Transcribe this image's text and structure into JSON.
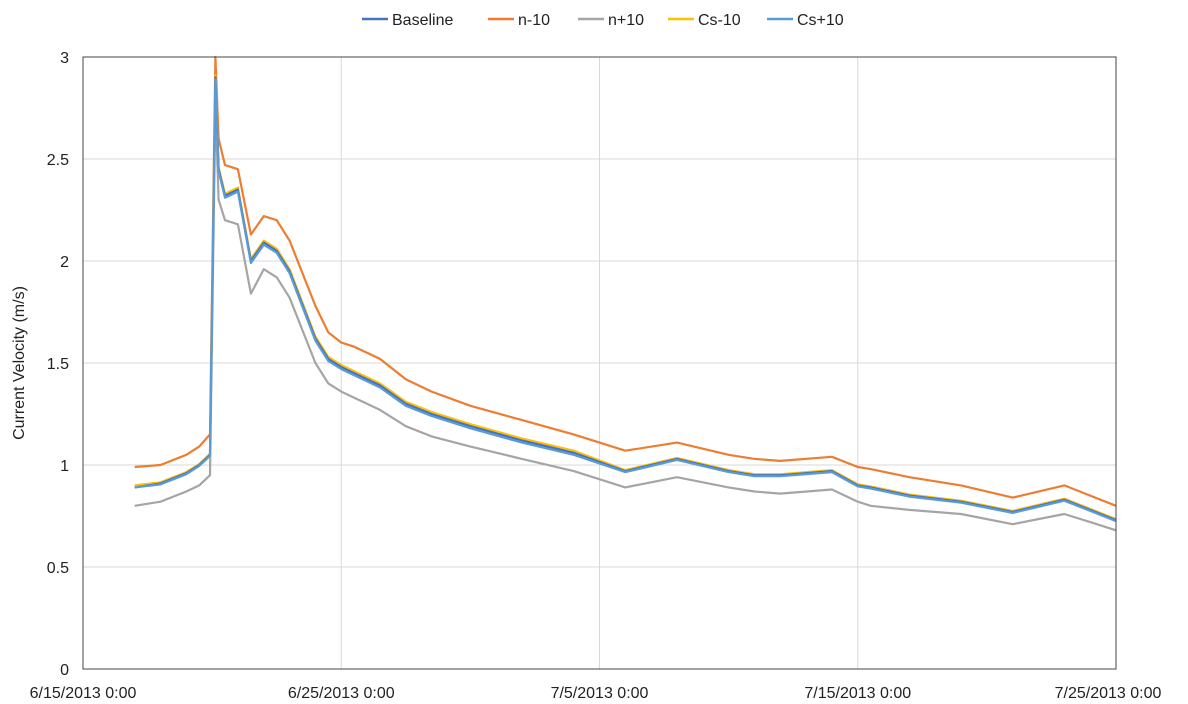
{
  "chart_data": {
    "type": "line",
    "title": "",
    "xlabel": "",
    "ylabel": "Current Velocity (m/s)",
    "x_type": "date",
    "xlim": [
      "6/15/2013 0:00",
      "7/25/2013 0:00"
    ],
    "x_ticks": [
      "6/15/2013 0:00",
      "6/25/2013 0:00",
      "7/5/2013 0:00",
      "7/15/2013 0:00",
      "7/25/2013 0:00"
    ],
    "ylim": [
      0,
      3
    ],
    "y_ticks": [
      "0",
      "0.5",
      "1",
      "1.5",
      "2",
      "2.5",
      "3"
    ],
    "grid": true,
    "legend_position": "top-center",
    "x": [
      "6/17/2013 0:00",
      "6/18/2013 0:00",
      "6/19/2013 0:00",
      "6/19/2013 12:00",
      "6/19/2013 22:00",
      "6/20/2013 3:00",
      "6/20/2013 6:00",
      "6/20/2013 12:00",
      "6/21/2013 0:00",
      "6/21/2013 12:00",
      "6/22/2013 0:00",
      "6/22/2013 12:00",
      "6/23/2013 0:00",
      "6/24/2013 0:00",
      "6/24/2013 12:00",
      "6/25/2013 0:00",
      "6/25/2013 12:00",
      "6/26/2013 12:00",
      "6/27/2013 12:00",
      "6/28/2013 12:00",
      "6/30/2013 0:00",
      "7/2/2013 0:00",
      "7/4/2013 0:00",
      "7/6/2013 0:00",
      "7/8/2013 0:00",
      "7/10/2013 0:00",
      "7/11/2013 0:00",
      "7/12/2013 0:00",
      "7/14/2013 0:00",
      "7/15/2013 0:00",
      "7/15/2013 12:00",
      "7/17/2013 0:00",
      "7/19/2013 0:00",
      "7/21/2013 0:00",
      "7/23/2013 0:00",
      "7/24/2013 0:00",
      "7/25/2013 0:00"
    ],
    "series": [
      {
        "name": "Baseline",
        "color": "#4472C4",
        "values": [
          0.89,
          0.91,
          0.96,
          1.0,
          1.05,
          2.9,
          2.45,
          2.32,
          2.35,
          2.0,
          2.09,
          2.05,
          1.95,
          1.62,
          1.52,
          1.48,
          1.45,
          1.39,
          1.3,
          1.25,
          1.19,
          1.12,
          1.06,
          0.97,
          1.03,
          0.97,
          0.95,
          0.95,
          0.97,
          0.9,
          0.89,
          0.85,
          0.82,
          0.77,
          0.83,
          0.78,
          0.73
        ]
      },
      {
        "name": "n-10",
        "color": "#ED7D31",
        "values": [
          0.99,
          1.0,
          1.05,
          1.09,
          1.15,
          3.0,
          2.6,
          2.47,
          2.45,
          2.13,
          2.22,
          2.2,
          2.1,
          1.78,
          1.65,
          1.6,
          1.58,
          1.52,
          1.42,
          1.36,
          1.29,
          1.22,
          1.15,
          1.07,
          1.11,
          1.05,
          1.03,
          1.02,
          1.04,
          0.99,
          0.98,
          0.94,
          0.9,
          0.84,
          0.9,
          0.85,
          0.8
        ]
      },
      {
        "name": "n+10",
        "color": "#A5A5A5",
        "values": [
          0.8,
          0.82,
          0.87,
          0.9,
          0.95,
          2.78,
          2.3,
          2.2,
          2.18,
          1.84,
          1.96,
          1.92,
          1.82,
          1.5,
          1.4,
          1.36,
          1.33,
          1.27,
          1.19,
          1.14,
          1.09,
          1.03,
          0.97,
          0.89,
          0.94,
          0.89,
          0.87,
          0.86,
          0.88,
          0.82,
          0.8,
          0.78,
          0.76,
          0.71,
          0.76,
          0.72,
          0.68
        ]
      },
      {
        "name": "Cs-10",
        "color": "#FFC000",
        "values": [
          0.9,
          0.915,
          0.965,
          1.005,
          1.055,
          2.91,
          2.46,
          2.33,
          2.36,
          2.01,
          2.1,
          2.06,
          1.96,
          1.63,
          1.53,
          1.49,
          1.46,
          1.4,
          1.31,
          1.26,
          1.2,
          1.13,
          1.07,
          0.975,
          1.035,
          0.975,
          0.955,
          0.955,
          0.975,
          0.905,
          0.895,
          0.855,
          0.825,
          0.775,
          0.835,
          0.785,
          0.735
        ]
      },
      {
        "name": "Cs+10",
        "color": "#5B9BD5",
        "values": [
          0.89,
          0.905,
          0.955,
          0.995,
          1.045,
          2.89,
          2.44,
          2.31,
          2.34,
          1.99,
          2.08,
          2.04,
          1.94,
          1.61,
          1.51,
          1.47,
          1.44,
          1.38,
          1.29,
          1.24,
          1.18,
          1.11,
          1.05,
          0.965,
          1.025,
          0.965,
          0.945,
          0.945,
          0.965,
          0.895,
          0.885,
          0.845,
          0.815,
          0.765,
          0.825,
          0.775,
          0.725
        ]
      }
    ]
  }
}
